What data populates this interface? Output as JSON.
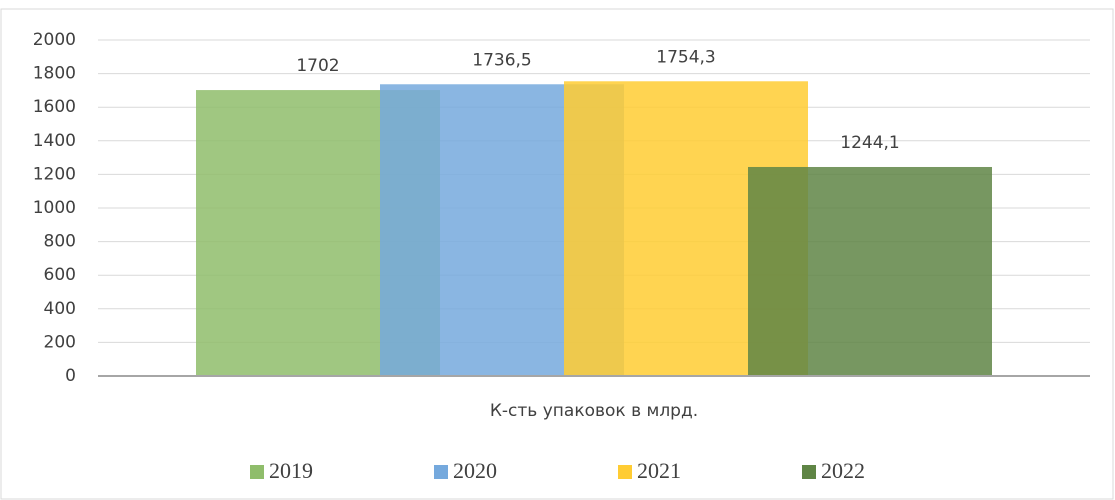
{
  "chart_data": {
    "type": "bar",
    "categories": [
      "К-сть упаковок в млрд."
    ],
    "series": [
      {
        "name": "2019",
        "color": "#8fbd6b",
        "values": [
          1702
        ],
        "value_labels": [
          "1702"
        ]
      },
      {
        "name": "2020",
        "color": "#75a9dd",
        "values": [
          1736.5
        ],
        "value_labels": [
          "1736,5"
        ]
      },
      {
        "name": "2021",
        "color": "#ffcc33",
        "values": [
          1754.3
        ],
        "value_labels": [
          "1754,3"
        ]
      },
      {
        "name": "2022",
        "color": "#5f8545",
        "values": [
          1244.1
        ],
        "value_labels": [
          "1244,1"
        ]
      }
    ],
    "ylim": [
      0,
      2000
    ],
    "yticks": [
      0,
      200,
      400,
      600,
      800,
      1000,
      1200,
      1400,
      1600,
      1800,
      2000
    ],
    "grid": true,
    "legend": "bottom"
  }
}
